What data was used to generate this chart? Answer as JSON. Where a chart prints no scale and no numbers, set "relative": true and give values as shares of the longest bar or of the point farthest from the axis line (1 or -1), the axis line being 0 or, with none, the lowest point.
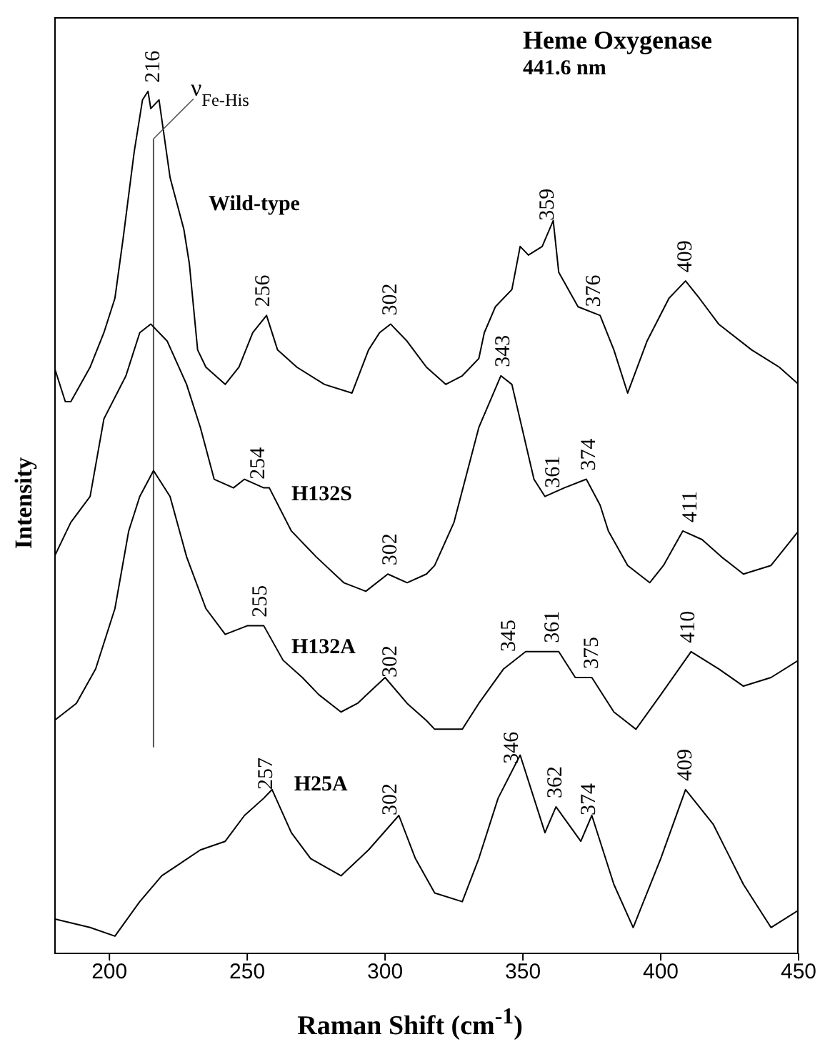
{
  "chart_data": {
    "type": "line",
    "title": "Heme Oxygenase",
    "subtitle": "441.6 nm",
    "xlabel": "Raman Shift (cm$^{-1}$)",
    "ylabel": "Intensity",
    "relative": true,
    "xlim": [
      180,
      450
    ],
    "xticks": [
      200,
      250,
      300,
      350,
      400,
      450
    ],
    "series": [
      {
        "name": "Wild-type",
        "color": "#000000",
        "x": [
          180,
          184,
          186,
          193,
          198,
          202,
          205,
          209,
          212,
          214,
          215,
          218,
          222,
          227,
          229,
          232,
          235,
          242,
          247,
          252,
          257,
          261,
          268,
          278,
          288,
          294,
          298,
          302,
          308,
          315,
          322,
          328,
          334,
          336,
          340,
          346,
          349,
          352,
          357,
          361,
          363,
          370,
          378,
          383,
          388,
          395,
          403,
          409,
          414,
          421,
          433,
          443,
          450
        ],
        "values": [
          0.68,
          0.64,
          0.64,
          0.68,
          0.72,
          0.76,
          0.83,
          0.93,
          0.99,
          1,
          0.98,
          0.99,
          0.9,
          0.84,
          0.8,
          0.7,
          0.68,
          0.66,
          0.68,
          0.72,
          0.74,
          0.7,
          0.68,
          0.66,
          0.65,
          0.7,
          0.72,
          0.73,
          0.71,
          0.68,
          0.66,
          0.67,
          0.69,
          0.72,
          0.75,
          0.77,
          0.82,
          0.81,
          0.82,
          0.85,
          0.79,
          0.75,
          0.74,
          0.7,
          0.65,
          0.71,
          0.76,
          0.78,
          0.76,
          0.73,
          0.7,
          0.68,
          0.66
        ]
      },
      {
        "name": "H132S",
        "color": "#000000",
        "x": [
          180,
          186,
          193,
          198,
          206,
          211,
          215,
          221,
          228,
          233,
          238,
          245,
          249,
          256,
          258,
          266,
          275,
          285,
          293,
          301,
          308,
          315,
          318,
          325,
          334,
          342,
          346,
          354,
          358,
          365,
          373,
          378,
          381,
          388,
          396,
          401,
          408,
          415,
          422,
          430,
          440,
          450
        ],
        "values": [
          0.46,
          0.5,
          0.53,
          0.62,
          0.67,
          0.72,
          0.73,
          0.71,
          0.66,
          0.61,
          0.55,
          0.54,
          0.55,
          0.54,
          0.54,
          0.49,
          0.46,
          0.43,
          0.42,
          0.44,
          0.43,
          0.44,
          0.45,
          0.5,
          0.61,
          0.67,
          0.66,
          0.55,
          0.53,
          0.54,
          0.55,
          0.52,
          0.49,
          0.45,
          0.43,
          0.45,
          0.49,
          0.48,
          0.46,
          0.44,
          0.45,
          0.49
        ]
      },
      {
        "name": "H132A",
        "color": "#000000",
        "x": [
          180,
          188,
          195,
          202,
          207,
          211,
          216,
          222,
          228,
          235,
          242,
          250,
          256,
          263,
          270,
          276,
          284,
          290,
          300,
          308,
          315,
          318,
          328,
          334,
          343,
          351,
          363,
          369,
          375,
          383,
          391,
          400,
          411,
          421,
          430,
          440,
          450
        ],
        "values": [
          0.27,
          0.29,
          0.33,
          0.4,
          0.49,
          0.53,
          0.56,
          0.53,
          0.46,
          0.4,
          0.37,
          0.38,
          0.38,
          0.34,
          0.32,
          0.3,
          0.28,
          0.29,
          0.32,
          0.29,
          0.27,
          0.26,
          0.26,
          0.29,
          0.33,
          0.35,
          0.35,
          0.32,
          0.32,
          0.28,
          0.26,
          0.3,
          0.35,
          0.33,
          0.31,
          0.32,
          0.34
        ]
      },
      {
        "name": "H25A",
        "color": "#000000",
        "x": [
          180,
          193,
          202,
          211,
          219,
          233,
          242,
          249,
          256,
          259,
          266,
          273,
          284,
          294,
          305,
          311,
          318,
          328,
          334,
          341,
          349,
          358,
          362,
          371,
          375,
          383,
          390,
          400,
          409,
          419,
          430,
          440,
          450
        ],
        "values": [
          0.04,
          0.03,
          0.02,
          0.06,
          0.09,
          0.12,
          0.13,
          0.16,
          0.18,
          0.19,
          0.14,
          0.11,
          0.09,
          0.12,
          0.16,
          0.11,
          0.07,
          0.06,
          0.11,
          0.18,
          0.23,
          0.14,
          0.17,
          0.13,
          0.16,
          0.08,
          0.03,
          0.11,
          0.19,
          0.15,
          0.08,
          0.03,
          0.05
        ]
      }
    ],
    "ref_lines": [
      {
        "axis": "x",
        "value": 216,
        "label": "ν$_{Fe-His}$",
        "color": "#555555"
      }
    ],
    "annotations": [
      {
        "text": "216",
        "x": 216,
        "y": 1
      },
      {
        "text": "256",
        "x": 256,
        "y": 0.74
      },
      {
        "text": "302",
        "x": 302,
        "y": 0.73
      },
      {
        "text": "359",
        "x": 359,
        "y": 0.84
      },
      {
        "text": "376",
        "x": 376,
        "y": 0.74
      },
      {
        "text": "409",
        "x": 409,
        "y": 0.78
      },
      {
        "text": "254",
        "x": 254,
        "y": 0.54
      },
      {
        "text": "343",
        "x": 343,
        "y": 0.67
      },
      {
        "text": "361",
        "x": 361,
        "y": 0.53
      },
      {
        "text": "374",
        "x": 374,
        "y": 0.55
      },
      {
        "text": "302",
        "x": 302,
        "y": 0.44
      },
      {
        "text": "411",
        "x": 411,
        "y": 0.49
      },
      {
        "text": "255",
        "x": 255,
        "y": 0.38
      },
      {
        "text": "302",
        "x": 302,
        "y": 0.31
      },
      {
        "text": "345",
        "x": 345,
        "y": 0.34
      },
      {
        "text": "361",
        "x": 361,
        "y": 0.35
      },
      {
        "text": "375",
        "x": 375,
        "y": 0.32
      },
      {
        "text": "410",
        "x": 410,
        "y": 0.35
      },
      {
        "text": "257",
        "x": 257,
        "y": 0.18
      },
      {
        "text": "302",
        "x": 302,
        "y": 0.15
      },
      {
        "text": "346",
        "x": 346,
        "y": 0.21
      },
      {
        "text": "362",
        "x": 362,
        "y": 0.17
      },
      {
        "text": "374",
        "x": 374,
        "y": 0.15
      },
      {
        "text": "409",
        "x": 409,
        "y": 0.19
      }
    ]
  }
}
